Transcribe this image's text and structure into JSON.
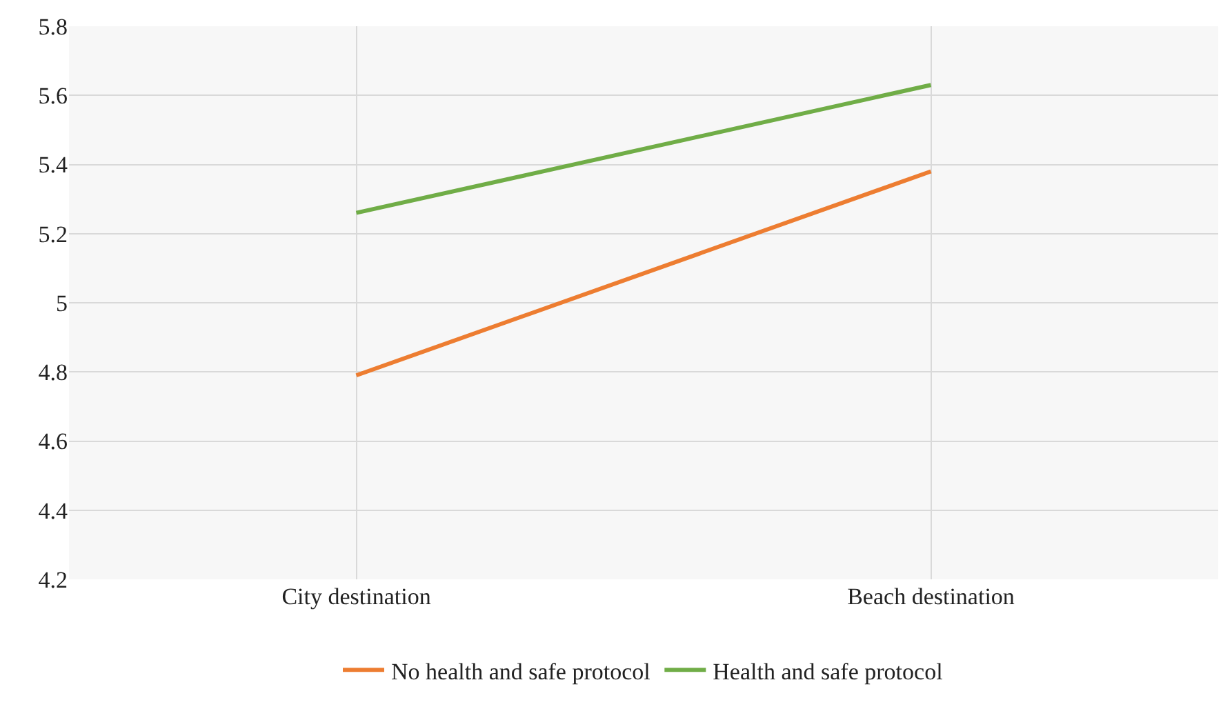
{
  "chart_data": {
    "type": "line",
    "categories": [
      "City destination",
      "Beach destination"
    ],
    "series": [
      {
        "name": "No health and safe protocol",
        "color": "#ed7d31",
        "values": [
          4.79,
          5.38
        ]
      },
      {
        "name": "Health and safe protocol",
        "color": "#70ad47",
        "values": [
          5.26,
          5.63
        ]
      }
    ],
    "ylim": [
      4.2,
      5.8
    ],
    "yticks": [
      4.2,
      4.4,
      4.6,
      4.8,
      5,
      5.2,
      5.4,
      5.6,
      5.8
    ],
    "grid": true,
    "legend": "bottom",
    "marker": "none",
    "line_style": "solid"
  }
}
